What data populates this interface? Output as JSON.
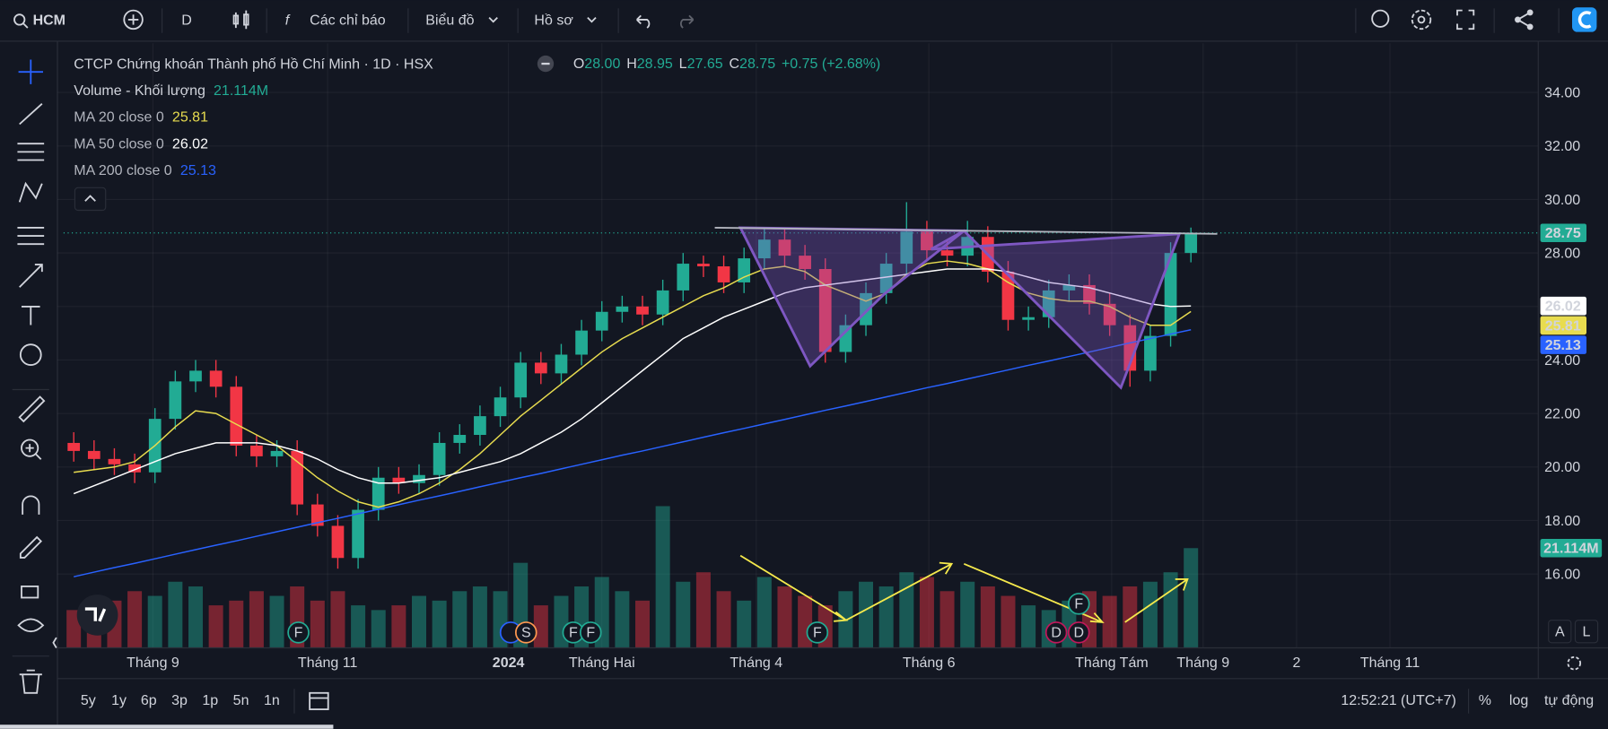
{
  "toolbar": {
    "symbol": "HCM",
    "interval": "D",
    "indicators": "Các chỉ báo",
    "chart_menu": "Biểu đồ",
    "profile": "Hồ sơ"
  },
  "legend": {
    "title": "CTCP Chứng khoán Thành phố Hồ Chí Minh · 1D · HSX",
    "open_key": "O",
    "open": "28.00",
    "high_key": "H",
    "high": "28.95",
    "low_key": "L",
    "low": "27.65",
    "close_key": "C",
    "close": "28.75",
    "change": "+0.75 (+2.68%)",
    "volume_name": "Volume - Khối lượng",
    "volume": "21.114M"
  },
  "chart_data": {
    "type": "candlestick",
    "open": [
      20.9,
      20.6,
      20.3,
      20.1,
      19.8,
      21.8,
      23.2,
      23.6,
      23.0,
      20.8,
      20.4,
      20.6,
      18.6,
      17.8,
      16.6,
      18.4,
      19.6,
      19.4,
      19.7,
      20.9,
      21.2,
      21.9,
      22.6,
      23.9,
      23.5,
      24.2,
      25.1,
      25.8,
      26.0,
      25.7,
      26.6,
      27.6,
      27.5,
      26.9,
      27.8,
      28.5,
      27.9,
      27.4,
      24.3,
      25.3,
      26.5,
      27.6,
      28.8,
      28.1,
      27.9,
      28.6,
      27.3,
      25.5,
      25.6,
      26.6,
      26.8,
      26.1,
      25.3,
      23.6,
      24.9,
      28.0
    ],
    "high": [
      21.3,
      21.0,
      20.7,
      20.5,
      22.2,
      23.6,
      24.0,
      24.0,
      23.4,
      21.2,
      21.0,
      21.0,
      19.0,
      18.2,
      18.8,
      20.0,
      20.0,
      20.1,
      21.3,
      21.6,
      22.3,
      23.0,
      24.3,
      24.3,
      24.6,
      25.5,
      26.2,
      26.4,
      26.4,
      27.0,
      28.0,
      27.9,
      27.9,
      28.2,
      28.9,
      28.9,
      28.3,
      27.8,
      25.7,
      26.9,
      28.0,
      29.9,
      29.2,
      28.5,
      29.2,
      29.0,
      27.7,
      26.0,
      27.0,
      27.2,
      27.2,
      26.5,
      25.7,
      25.3,
      28.4,
      28.95
    ],
    "low": [
      20.2,
      19.9,
      19.7,
      19.4,
      19.4,
      21.4,
      22.8,
      22.6,
      20.4,
      20.0,
      20.0,
      18.2,
      17.4,
      16.2,
      16.2,
      18.0,
      19.0,
      19.0,
      19.3,
      20.5,
      20.8,
      21.5,
      22.2,
      23.1,
      23.1,
      23.8,
      24.7,
      25.4,
      25.3,
      25.3,
      26.2,
      27.1,
      26.5,
      26.5,
      27.4,
      27.5,
      27.0,
      23.9,
      23.9,
      24.9,
      26.1,
      27.2,
      27.7,
      27.5,
      27.5,
      26.9,
      25.1,
      25.1,
      25.2,
      26.2,
      25.7,
      24.9,
      23.0,
      23.2,
      24.5,
      27.65
    ],
    "close": [
      20.6,
      20.3,
      20.1,
      19.8,
      21.8,
      23.2,
      23.6,
      23.0,
      20.8,
      20.4,
      20.6,
      18.6,
      17.8,
      16.6,
      18.4,
      19.6,
      19.4,
      19.7,
      20.9,
      21.2,
      21.9,
      22.6,
      23.9,
      23.5,
      24.2,
      25.1,
      25.8,
      26.0,
      25.7,
      26.6,
      27.6,
      27.5,
      26.9,
      27.8,
      28.5,
      27.9,
      27.4,
      24.3,
      25.3,
      26.5,
      27.6,
      28.8,
      28.1,
      27.9,
      28.6,
      27.3,
      25.5,
      25.6,
      26.6,
      26.8,
      26.1,
      25.3,
      23.6,
      24.9,
      28.0,
      28.75
    ],
    "volume": [
      8,
      9,
      10,
      12,
      11,
      14,
      13,
      9,
      10,
      12,
      11,
      13,
      10,
      12,
      9,
      8,
      9,
      11,
      10,
      12,
      13,
      12,
      18,
      9,
      11,
      13,
      15,
      12,
      10,
      30,
      14,
      16,
      12,
      10,
      15,
      13,
      11,
      9,
      12,
      14,
      13,
      16,
      15,
      12,
      14,
      13,
      11,
      9,
      8,
      10,
      12,
      11,
      13,
      14,
      16,
      21.114
    ],
    "volume_lim": [
      0,
      128
    ],
    "up_color": "#22ab94",
    "down_color": "#f23645",
    "series": [
      {
        "name": "MA 20 close 0",
        "color": "#e8dc4f",
        "values": [
          19.8,
          19.9,
          20.0,
          20.2,
          20.8,
          21.5,
          22.1,
          22.0,
          21.6,
          21.2,
          20.8,
          20.2,
          19.6,
          19.1,
          18.7,
          18.5,
          18.7,
          19.0,
          19.4,
          19.9,
          20.5,
          21.2,
          21.9,
          22.5,
          23.1,
          23.7,
          24.3,
          24.8,
          25.2,
          25.6,
          26.0,
          26.4,
          26.7,
          27.1,
          27.4,
          27.5,
          27.3,
          26.8,
          26.5,
          26.2,
          26.5,
          27.2,
          27.6,
          27.7,
          27.6,
          27.4,
          26.9,
          26.5,
          26.3,
          26.2,
          26.2,
          26.0,
          25.6,
          25.3,
          25.3,
          25.81
        ]
      },
      {
        "name": "MA 50 close 0",
        "color": "#ffffff",
        "values": [
          19.0,
          19.3,
          19.6,
          19.9,
          20.2,
          20.5,
          20.7,
          20.9,
          20.9,
          20.9,
          20.8,
          20.6,
          20.3,
          19.9,
          19.6,
          19.4,
          19.4,
          19.5,
          19.6,
          19.8,
          20.0,
          20.2,
          20.5,
          20.9,
          21.3,
          21.8,
          22.4,
          23.0,
          23.6,
          24.2,
          24.8,
          25.2,
          25.6,
          25.9,
          26.2,
          26.5,
          26.7,
          26.8,
          26.9,
          27.0,
          27.1,
          27.2,
          27.3,
          27.4,
          27.4,
          27.4,
          27.3,
          27.1,
          26.9,
          26.8,
          26.7,
          26.5,
          26.3,
          26.1,
          26.0,
          26.02
        ]
      },
      {
        "name": "MA 200 close 0",
        "color": "#2962ff",
        "values": [
          15.9,
          16.07,
          16.24,
          16.4,
          16.57,
          16.74,
          16.91,
          17.08,
          17.24,
          17.41,
          17.58,
          17.75,
          17.92,
          18.08,
          18.25,
          18.42,
          18.59,
          18.76,
          18.92,
          19.09,
          19.26,
          19.43,
          19.6,
          19.76,
          19.93,
          20.1,
          20.27,
          20.44,
          20.6,
          20.77,
          20.94,
          21.11,
          21.28,
          21.44,
          21.61,
          21.78,
          21.95,
          22.12,
          22.28,
          22.45,
          22.62,
          22.79,
          22.96,
          23.12,
          23.29,
          23.46,
          23.63,
          23.8,
          23.96,
          24.13,
          24.3,
          24.47,
          24.64,
          24.8,
          24.97,
          25.13
        ]
      }
    ],
    "xlim": [
      -0.5,
      72.1
    ],
    "xticks": [
      {
        "value": 3.9,
        "label": "Tháng 9"
      },
      {
        "value": 12.5,
        "label": "Tháng 11"
      },
      {
        "value": 21.4,
        "label": "2024"
      },
      {
        "value": 26.0,
        "label": "Tháng Hai"
      },
      {
        "value": 33.6,
        "label": "Tháng 4"
      },
      {
        "value": 42.1,
        "label": "Tháng 6"
      },
      {
        "value": 51.1,
        "label": "Tháng Tám"
      },
      {
        "value": 55.6,
        "label": "Tháng 9"
      },
      {
        "value": 60.2,
        "label": "2"
      },
      {
        "value": 64.8,
        "label": "Tháng 11"
      }
    ],
    "ylim": [
      13.24,
      35.84
    ],
    "yticks": [
      {
        "value": 16,
        "label": "16.00"
      },
      {
        "value": 18,
        "label": "18.00"
      },
      {
        "value": 20,
        "label": "20.00"
      },
      {
        "value": 22,
        "label": "22.00"
      },
      {
        "value": 24,
        "label": "24.00"
      },
      {
        "value": 26,
        "label": "26.00"
      },
      {
        "value": 28,
        "label": "28.00"
      },
      {
        "value": 30,
        "label": "30.00"
      },
      {
        "value": 32,
        "label": "32.00"
      },
      {
        "value": 34,
        "label": "34.00"
      }
    ],
    "grid": true
  },
  "events": [
    "F",
    "S",
    "F",
    "F",
    "F",
    "F",
    "D",
    "D"
  ],
  "scale_buttons": [
    "A",
    "L"
  ],
  "bottom_bar": {
    "ranges": [
      "5y",
      "1y",
      "6p",
      "3p",
      "1p",
      "5n",
      "1n"
    ],
    "clock": "12:52:21 (UTC+7)",
    "percent": "%",
    "log": "log",
    "auto": "tự động"
  }
}
